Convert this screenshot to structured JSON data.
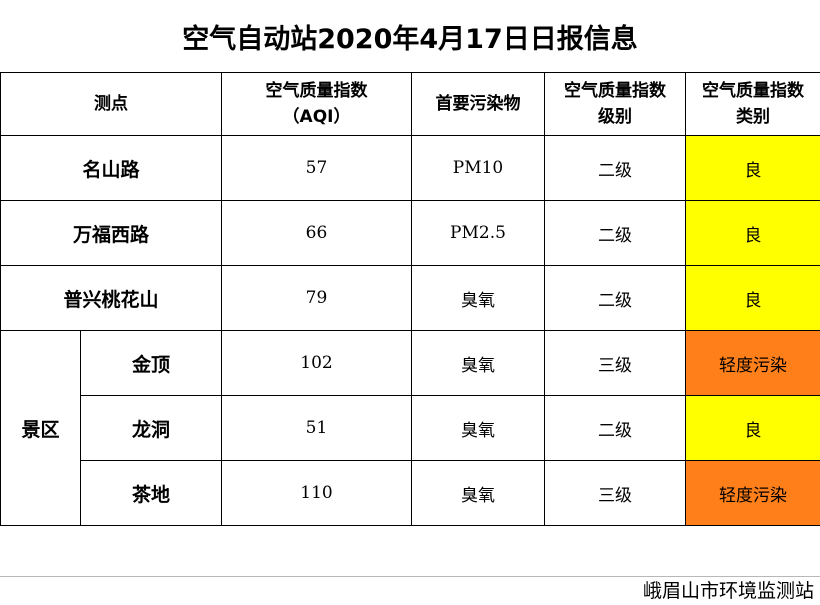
{
  "title": "空气自动站2020年4月17日日报信息",
  "headers": {
    "station": "测点",
    "aqi_line1": "空气质量指数",
    "aqi_line2": "（AQI）",
    "pollutant": "首要污染物",
    "level_line1": "空气质量指数",
    "level_line2": "级别",
    "category_line1": "空气质量指数",
    "category_line2": "类别"
  },
  "rows": [
    {
      "station": "名山路",
      "aqi": "57",
      "pollutant": "PM10",
      "level": "二级",
      "category": "良"
    },
    {
      "station": "万福西路",
      "aqi": "66",
      "pollutant": "PM2.5",
      "level": "二级",
      "category": "良"
    },
    {
      "station": "普兴桃花山",
      "aqi": "79",
      "pollutant": "臭氧",
      "level": "二级",
      "category": "良"
    }
  ],
  "scenic_group": {
    "label": "景区",
    "rows": [
      {
        "station": "金顶",
        "aqi": "102",
        "pollutant": "臭氧",
        "level": "三级",
        "category": "轻度污染"
      },
      {
        "station": "龙洞",
        "aqi": "51",
        "pollutant": "臭氧",
        "level": "二级",
        "category": "良"
      },
      {
        "station": "茶地",
        "aqi": "110",
        "pollutant": "臭氧",
        "level": "三级",
        "category": "轻度污染"
      }
    ]
  },
  "colors": {
    "good": "#ffff00",
    "light_pollution": "#ff7f1a"
  },
  "footer": "峨眉山市环境监测站"
}
